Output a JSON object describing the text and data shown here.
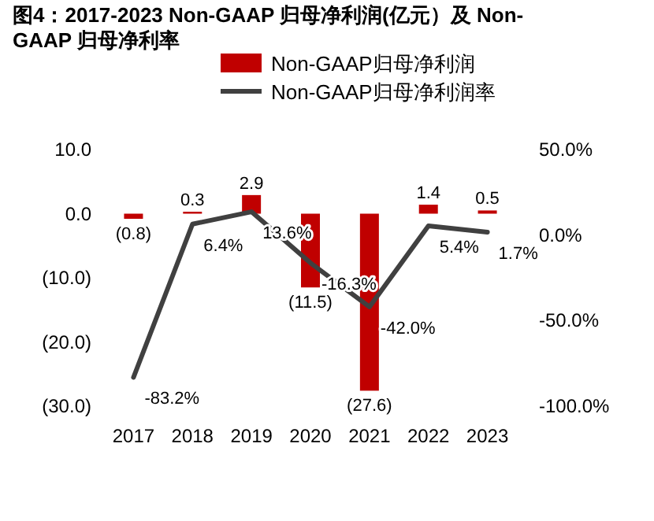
{
  "chart_data": {
    "type": "bar",
    "title": "图4：2017-2023 Non-GAAP 归母净利润(亿元）及 Non-GAAP 归母净利率",
    "categories": [
      "2017",
      "2018",
      "2019",
      "2020",
      "2021",
      "2022",
      "2023"
    ],
    "series": [
      {
        "name": "Non-GAAP归母净利润",
        "color": "#c00000",
        "values": [
          -0.8,
          0.3,
          2.9,
          -11.5,
          -27.6,
          1.4,
          0.5
        ],
        "value_labels": [
          "(0.8)",
          "0.3",
          "2.9",
          "(11.5)",
          "(27.6)",
          "1.4",
          "0.5"
        ]
      },
      {
        "name": "Non-GAAP归母净利润率",
        "type": "line",
        "axis": "y2",
        "color": "#404040",
        "values": [
          -83.2,
          6.4,
          13.6,
          -16.3,
          -42.0,
          5.4,
          1.7
        ],
        "value_labels": [
          "-83.2%",
          "6.4%",
          "13.6%",
          "-16.3%",
          "-42.0%",
          "5.4%",
          "1.7%"
        ]
      }
    ],
    "ylim": [
      -30,
      10
    ],
    "yticks": [
      {
        "value": 10,
        "label": "10.0"
      },
      {
        "value": 0,
        "label": "0.0"
      },
      {
        "value": -10,
        "label": "(10.0)"
      },
      {
        "value": -20,
        "label": "(20.0)"
      },
      {
        "value": -30,
        "label": "(30.0)"
      }
    ],
    "y2lim": [
      -100,
      50
    ],
    "y2ticks": [
      {
        "value": 50,
        "label": "50.0%"
      },
      {
        "value": 0,
        "label": "0.0%"
      },
      {
        "value": -50,
        "label": "-50.0%"
      },
      {
        "value": -100,
        "label": "-100.0%"
      }
    ],
    "legend": "top right",
    "grid": false,
    "marker": "none"
  }
}
